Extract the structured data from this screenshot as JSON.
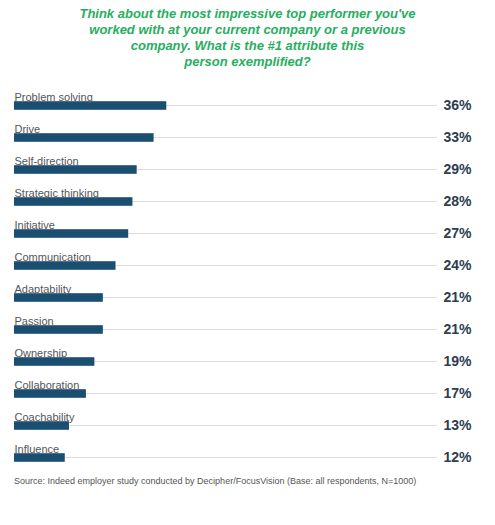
{
  "chart_data": {
    "type": "bar",
    "orientation": "horizontal",
    "title": "Think about the most impressive top performer you've\nworked with at your current company or a previous\ncompany. What is the #1 attribute this\nperson exemplified?",
    "caption": "Source: Indeed employer study conducted by Decipher/FocusVision (Base: all respondents, N=1000)",
    "categories": [
      "Problem solving",
      "Drive",
      "Self-direction",
      "Strategic thinking",
      "Initiative",
      "Communication",
      "Adaptability",
      "Passion",
      "Ownership",
      "Collaboration",
      "Coachability",
      "Influence"
    ],
    "values": [
      36,
      33,
      29,
      28,
      27,
      24,
      21,
      21,
      19,
      17,
      13,
      12
    ],
    "value_labels": [
      "36%",
      "33%",
      "29%",
      "28%",
      "27%",
      "24%",
      "21%",
      "21%",
      "19%",
      "17%",
      "13%",
      "12%"
    ],
    "color": "#1b4f72",
    "xlim": [
      0,
      100
    ],
    "data_labels": true,
    "tick_labels": false,
    "grid": false
  }
}
